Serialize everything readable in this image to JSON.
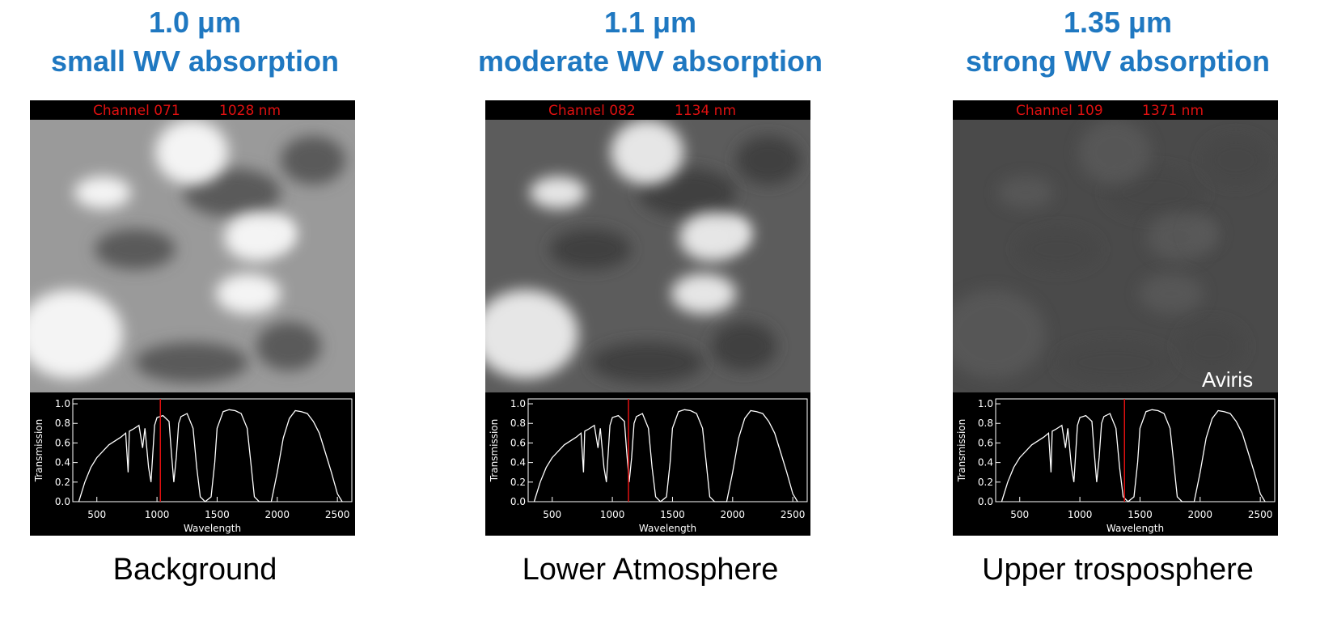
{
  "panels": [
    {
      "title": "1.0 μm",
      "subtitle": "small WV absorption",
      "channel": "Channel 071",
      "channel_nm": "1028 nm",
      "marker_nm": 1028,
      "caption": "Background"
    },
    {
      "title": "1.1 μm",
      "subtitle": "moderate WV absorption",
      "channel": "Channel 082",
      "channel_nm": "1134 nm",
      "marker_nm": 1134,
      "caption": "Lower Atmosphere"
    },
    {
      "title": "1.35 μm",
      "subtitle": "strong WV absorption",
      "channel": "Channel 109",
      "channel_nm": "1371 nm",
      "marker_nm": 1371,
      "caption": "Upper trosposphere"
    }
  ],
  "image_label": "Aviris",
  "transmission_chart": {
    "type": "line",
    "xlabel": "Wavelength",
    "ylabel": "Transmission",
    "xlim": [
      300,
      2620
    ],
    "ylim": [
      0,
      1.05
    ],
    "xticks": [
      500,
      1000,
      1500,
      2000,
      2500
    ],
    "yticks": [
      {
        "value": 0,
        "label": "0.0"
      },
      {
        "value": 0.2,
        "label": "0.2"
      },
      {
        "value": 0.4,
        "label": "0.4"
      },
      {
        "value": 0.6,
        "label": "0.6"
      },
      {
        "value": 0.8,
        "label": "0.8"
      },
      {
        "value": 1,
        "label": "1.0"
      }
    ],
    "color": "#ffffff",
    "x": [
      350,
      400,
      450,
      500,
      600,
      700,
      740,
      760,
      770,
      800,
      850,
      880,
      900,
      930,
      950,
      980,
      1000,
      1050,
      1100,
      1120,
      1140,
      1160,
      1180,
      1200,
      1250,
      1300,
      1330,
      1360,
      1400,
      1450,
      1480,
      1500,
      1550,
      1600,
      1650,
      1700,
      1750,
      1780,
      1810,
      1850,
      1950,
      2000,
      2050,
      2100,
      2150,
      2200,
      2250,
      2300,
      2350,
      2400,
      2450,
      2500,
      2540
    ],
    "values": [
      0,
      0.2,
      0.35,
      0.45,
      0.58,
      0.66,
      0.7,
      0.3,
      0.72,
      0.74,
      0.78,
      0.55,
      0.75,
      0.35,
      0.2,
      0.78,
      0.86,
      0.88,
      0.82,
      0.5,
      0.2,
      0.45,
      0.8,
      0.87,
      0.9,
      0.75,
      0.35,
      0.05,
      0,
      0.05,
      0.4,
      0.75,
      0.92,
      0.94,
      0.93,
      0.9,
      0.75,
      0.4,
      0.05,
      0,
      0,
      0.3,
      0.65,
      0.85,
      0.93,
      0.92,
      0.9,
      0.82,
      0.7,
      0.5,
      0.3,
      0.08,
      0
    ]
  }
}
